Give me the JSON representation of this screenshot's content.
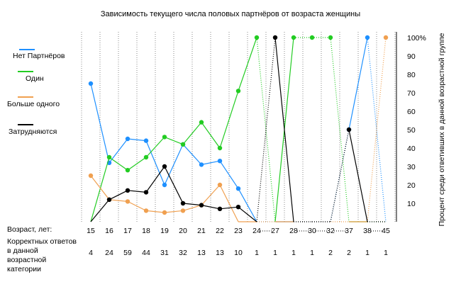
{
  "chart_data": {
    "type": "line",
    "title": "Зависимость текущего числа половых партнёров от  возраста  женщины",
    "xlabel": "Возраст, лет:",
    "ylabel": "Процент среди ответивших в данной возрастной группе",
    "count_label": "Корректных ответов в данной возрастной категории",
    "categories": [
      "15",
      "16",
      "17",
      "18",
      "19",
      "20",
      "21",
      "22",
      "23",
      "24",
      "27",
      "28",
      "30",
      "32",
      "37",
      "38",
      "45"
    ],
    "counts": [
      "4",
      "24",
      "59",
      "44",
      "31",
      "32",
      "13",
      "13",
      "10",
      "1",
      "1",
      "1",
      "1",
      "2",
      "2",
      "1",
      "1"
    ],
    "ylim": [
      0,
      100
    ],
    "yticks": [
      "10",
      "20",
      "30",
      "40",
      "50",
      "60",
      "70",
      "80",
      "90",
      "100%"
    ],
    "series": [
      {
        "name": "Нет Партнёров",
        "color": "#1e90ff",
        "values": [
          75,
          32,
          45,
          44,
          20,
          42,
          31,
          33,
          18,
          0,
          0,
          0,
          0,
          0,
          50,
          100,
          0
        ]
      },
      {
        "name": "Один",
        "color": "#22cc22",
        "values": [
          0,
          35,
          28,
          35,
          46,
          42,
          54,
          40,
          71,
          100,
          0,
          100,
          100,
          100,
          0,
          0,
          0
        ]
      },
      {
        "name": "Больше одного",
        "color": "#f0a050",
        "values": [
          25,
          12,
          11,
          6,
          5,
          6,
          9,
          20,
          0,
          0,
          0,
          0,
          0,
          0,
          0,
          0,
          100
        ]
      },
      {
        "name": "Затрудняются",
        "color": "#000000",
        "values": [
          0,
          12,
          17,
          16,
          30,
          10,
          9,
          7,
          8,
          0,
          100,
          0,
          0,
          0,
          50,
          0,
          0
        ]
      }
    ],
    "grid": "vertical",
    "legend": "left"
  }
}
